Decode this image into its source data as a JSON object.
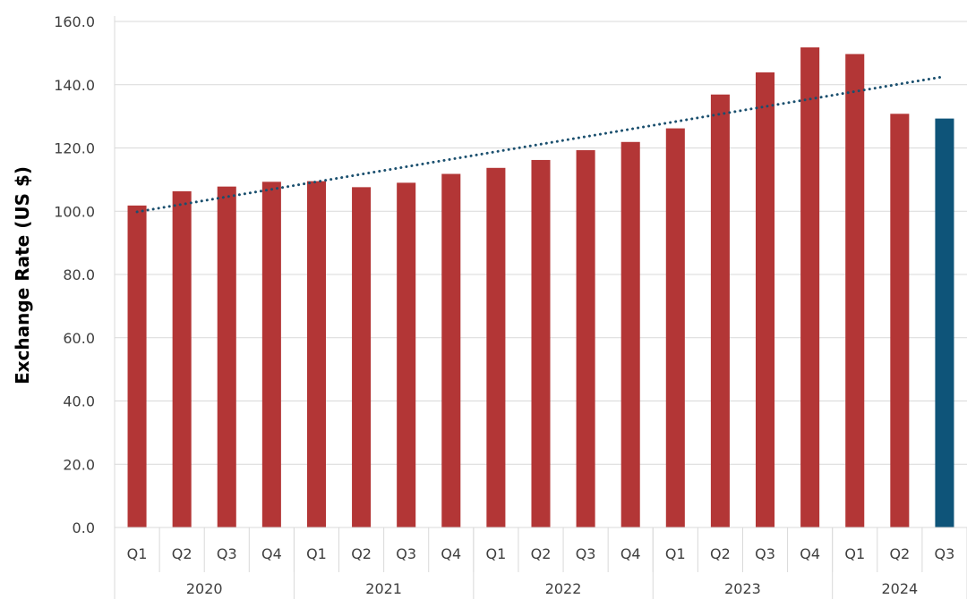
{
  "chart_data": {
    "type": "bar",
    "title": "",
    "xlabel": "",
    "ylabel": "Exchange Rate (US $)",
    "ylim": [
      0,
      160
    ],
    "yticks": [
      "0.0",
      "20.0",
      "40.0",
      "60.0",
      "80.0",
      "100.0",
      "120.0",
      "140.0",
      "160.0"
    ],
    "grid": "horizontal",
    "legend": "none",
    "categories": [
      "Q1",
      "Q2",
      "Q3",
      "Q4",
      "Q1",
      "Q2",
      "Q3",
      "Q4",
      "Q1",
      "Q2",
      "Q3",
      "Q4",
      "Q1",
      "Q2",
      "Q3",
      "Q4",
      "Q1",
      "Q2",
      "Q3"
    ],
    "groups": [
      {
        "label": "2020",
        "count": 4
      },
      {
        "label": "2021",
        "count": 4
      },
      {
        "label": "2022",
        "count": 4
      },
      {
        "label": "2023",
        "count": 4
      },
      {
        "label": "2024",
        "count": 3
      }
    ],
    "values": [
      101.8,
      106.3,
      107.8,
      109.3,
      109.5,
      107.6,
      109.0,
      111.8,
      113.7,
      116.2,
      119.3,
      121.9,
      126.2,
      136.9,
      143.9,
      151.8,
      149.7,
      130.8,
      129.3
    ],
    "bar_colors": [
      "#b33636",
      "#b33636",
      "#b33636",
      "#b33636",
      "#b33636",
      "#b33636",
      "#b33636",
      "#b33636",
      "#b33636",
      "#b33636",
      "#b33636",
      "#b33636",
      "#b33636",
      "#b33636",
      "#b33636",
      "#b33636",
      "#b33636",
      "#b33636",
      "#0e5479"
    ],
    "trendline": {
      "style": "dotted",
      "color": "#1a4f6e",
      "start_value": 99.8,
      "end_value": 142.6
    }
  }
}
